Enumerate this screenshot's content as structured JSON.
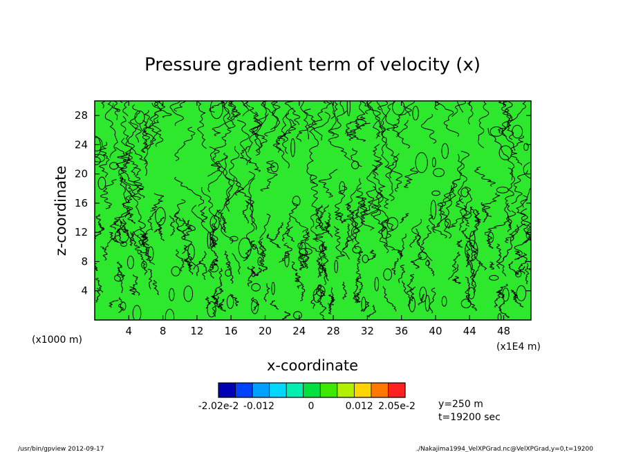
{
  "chart_data": {
    "type": "heatmap",
    "title": "Pressure gradient term of velocity (x)",
    "xlabel": "x-coordinate",
    "ylabel": "z-coordinate",
    "x_unit_left": "(x1000 m)",
    "x_unit_right": "(x1E4 m)",
    "x_range": [
      0,
      51.2
    ],
    "y_range": [
      0,
      30
    ],
    "x_ticks": [
      4,
      8,
      12,
      16,
      20,
      24,
      28,
      32,
      36,
      40,
      44,
      48
    ],
    "y_ticks": [
      4,
      8,
      12,
      16,
      20,
      24,
      28
    ],
    "x_tick_labels": [
      "4",
      "8",
      "12",
      "16",
      "20",
      "24",
      "28",
      "32",
      "36",
      "40",
      "44",
      "48"
    ],
    "y_tick_labels": [
      "4",
      "8",
      "12",
      "16",
      "20",
      "24",
      "28"
    ],
    "grid": false,
    "colorbar": {
      "colors": [
        "#0000b4",
        "#0040ff",
        "#00a0ff",
        "#00d8ff",
        "#00f0b0",
        "#00e040",
        "#40e800",
        "#b0f000",
        "#ffd400",
        "#ff7800",
        "#ff2020"
      ],
      "labels": [
        "-2.02e-2",
        "-0.012",
        "0",
        "0.012",
        "2.05e-2"
      ],
      "label_values": [
        -0.0202,
        -0.012,
        0,
        0.012,
        0.0205
      ],
      "range": [
        -0.0202,
        0.0205
      ]
    },
    "field_color": "#2ee82e",
    "annotations": {
      "y_info": "y=250 m",
      "t_info": "t=19200 sec"
    }
  },
  "footer": {
    "left": "/usr/bin/gpview   2012-09-17",
    "right": "./Nakajima1994_VelXPGrad.nc@VelXPGrad,y=0,t=19200"
  }
}
